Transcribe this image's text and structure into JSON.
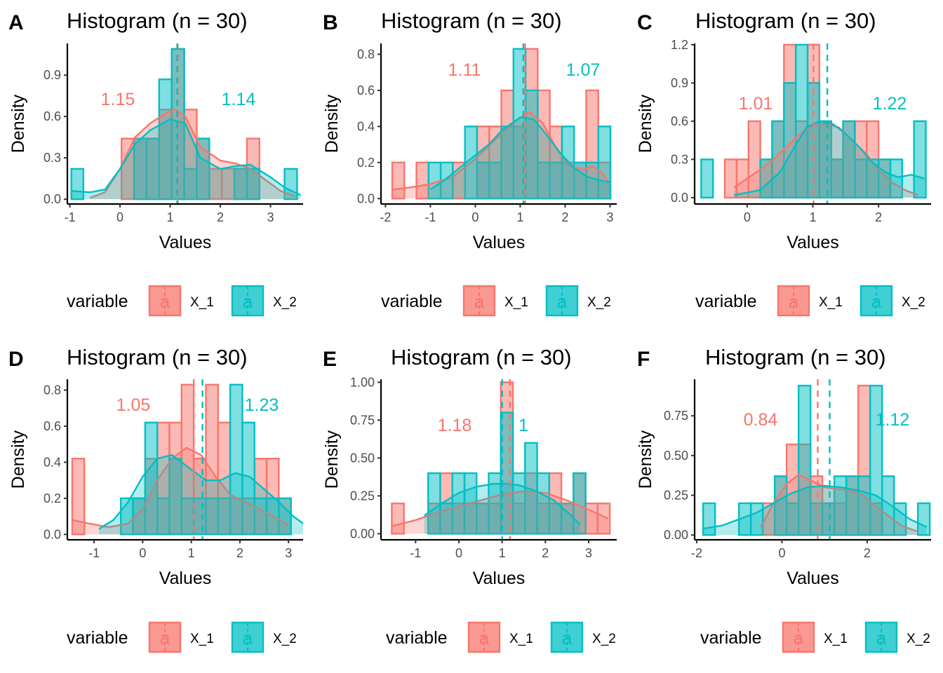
{
  "colors": {
    "X_1": "#F8766D",
    "X_2": "#00BFC4"
  },
  "chart_data": [
    {
      "panel": "A",
      "type": "histogram+density",
      "title": "Histogram (n = 30)",
      "xlabel": "Values",
      "ylabel": "Density",
      "xlim": [
        -1.05,
        3.65
      ],
      "ylim": [
        -0.035,
        1.13
      ],
      "xticks": [
        -1,
        0,
        1,
        2,
        3
      ],
      "yticks": [
        0,
        0.3,
        0.6,
        0.9
      ],
      "bins": [
        -0.97,
        -0.73,
        -0.47,
        -0.22,
        0.03,
        0.28,
        0.53,
        0.78,
        1.03,
        1.28,
        1.53,
        1.78,
        2.03,
        2.28,
        2.53,
        2.78,
        3.03,
        3.28,
        3.53
      ],
      "series": [
        {
          "name": "X_1",
          "mean": 1.15,
          "mean_label": "1.15",
          "hist": [
            0,
            0,
            0,
            0,
            0.44,
            0.44,
            0.44,
            0.65,
            1.09,
            0.65,
            0.44,
            0.22,
            0.22,
            0.22,
            0.44,
            0,
            0,
            0
          ],
          "density_x": [
            -0.6,
            -0.3,
            0,
            0.3,
            0.6,
            0.9,
            1.1,
            1.3,
            1.6,
            2,
            2.3,
            2.6,
            2.9,
            3.2,
            3.5
          ],
          "density_y": [
            0.01,
            0.05,
            0.22,
            0.45,
            0.55,
            0.62,
            0.65,
            0.6,
            0.38,
            0.28,
            0.26,
            0.22,
            0.14,
            0.06,
            0.02
          ]
        },
        {
          "name": "X_2",
          "mean": 1.14,
          "mean_label": "1.14",
          "hist": [
            0.22,
            0,
            0,
            0,
            0,
            0.44,
            0.44,
            0.87,
            1.09,
            0.22,
            0.44,
            0,
            0,
            0.22,
            0.22,
            0,
            0,
            0.22
          ],
          "density_x": [
            -0.97,
            -0.6,
            -0.3,
            0,
            0.3,
            0.6,
            1,
            1.3,
            1.6,
            2,
            2.3,
            2.6,
            3,
            3.3,
            3.6
          ],
          "density_y": [
            0.06,
            0.05,
            0.07,
            0.22,
            0.4,
            0.5,
            0.58,
            0.55,
            0.3,
            0.22,
            0.24,
            0.25,
            0.16,
            0.08,
            0.03
          ]
        }
      ]
    },
    {
      "panel": "B",
      "type": "histogram+density",
      "title": "Histogram (n = 30)",
      "xlabel": "Values",
      "ylabel": "Density",
      "xlim": [
        -2.1,
        3.15
      ],
      "ylim": [
        -0.03,
        0.86
      ],
      "xticks": [
        -2,
        -1,
        0,
        1,
        2,
        3
      ],
      "yticks": [
        0,
        0.2,
        0.4,
        0.6,
        0.8
      ],
      "bins": [
        -1.85,
        -1.58,
        -1.31,
        -1.04,
        -0.77,
        -0.5,
        -0.23,
        0.04,
        0.31,
        0.58,
        0.85,
        1.12,
        1.39,
        1.66,
        1.93,
        2.2,
        2.47,
        2.74,
        3.01
      ],
      "series": [
        {
          "name": "X_1",
          "mean": 1.11,
          "mean_label": "1.11",
          "hist": [
            0.2,
            0,
            0.2,
            0,
            0,
            0.2,
            0,
            0.4,
            0.4,
            0.6,
            0.4,
            0.83,
            0.6,
            0.4,
            0.2,
            0.2,
            0.6,
            0.2
          ],
          "density_x": [
            -1.85,
            -1.5,
            -1,
            -0.5,
            0,
            0.5,
            0.9,
            1.2,
            1.5,
            1.8,
            2.1,
            2.4,
            2.6,
            2.8,
            3
          ],
          "density_y": [
            0.05,
            0.06,
            0.08,
            0.12,
            0.22,
            0.34,
            0.43,
            0.48,
            0.42,
            0.28,
            0.18,
            0.16,
            0.18,
            0.15,
            0.08
          ]
        },
        {
          "name": "X_2",
          "mean": 1.07,
          "mean_label": "1.07",
          "hist": [
            0,
            0,
            0,
            0.2,
            0.2,
            0,
            0.4,
            0.2,
            0.2,
            0.4,
            0.83,
            0.6,
            0.2,
            0.2,
            0.4,
            0.2,
            0.2,
            0.4
          ],
          "density_x": [
            -1,
            -0.7,
            -0.3,
            0,
            0.3,
            0.6,
            1,
            1.3,
            1.6,
            1.9,
            2.2,
            2.5,
            2.8,
            3
          ],
          "density_y": [
            0.05,
            0.1,
            0.18,
            0.24,
            0.3,
            0.38,
            0.45,
            0.44,
            0.35,
            0.25,
            0.17,
            0.12,
            0.1,
            0.09
          ]
        }
      ]
    },
    {
      "panel": "C",
      "type": "histogram+density",
      "title": "Histogram (n = 30)",
      "xlabel": "Values",
      "ylabel": "Density",
      "xlim": [
        -0.8,
        2.8
      ],
      "ylim": [
        -0.05,
        1.21
      ],
      "xticks": [
        0,
        1,
        2
      ],
      "yticks": [
        0,
        0.3,
        0.6,
        0.9,
        1.2
      ],
      "bins": [
        -0.7,
        -0.52,
        -0.34,
        -0.16,
        0.02,
        0.2,
        0.38,
        0.56,
        0.74,
        0.92,
        1.1,
        1.28,
        1.46,
        1.64,
        1.82,
        2,
        2.18,
        2.36,
        2.54,
        2.72
      ],
      "series": [
        {
          "name": "X_1",
          "mean": 1.01,
          "mean_label": "1.01",
          "hist": [
            0,
            0,
            0.3,
            0.3,
            0.6,
            0.3,
            0.6,
            1.2,
            0.6,
            1.2,
            0.6,
            0.3,
            0.6,
            0.6,
            0.6,
            0.3,
            0,
            0,
            0
          ],
          "density_x": [
            -0.2,
            0,
            0.2,
            0.4,
            0.6,
            0.8,
            1,
            1.2,
            1.4,
            1.6,
            1.8,
            2,
            2.2,
            2.4,
            2.6
          ],
          "density_y": [
            0.08,
            0.15,
            0.22,
            0.3,
            0.4,
            0.5,
            0.56,
            0.58,
            0.55,
            0.45,
            0.35,
            0.22,
            0.12,
            0.06,
            0.02
          ]
        },
        {
          "name": "X_2",
          "mean": 1.22,
          "mean_label": "1.22",
          "hist": [
            0.3,
            0,
            0,
            0,
            0,
            0.3,
            0.6,
            0.9,
            1.2,
            0.9,
            0.6,
            0.3,
            0.6,
            0.3,
            0.3,
            0.3,
            0.3,
            0,
            0.6
          ],
          "density_x": [
            -0.2,
            0.2,
            0.5,
            0.7,
            0.9,
            1.1,
            1.3,
            1.5,
            1.7,
            1.9,
            2.1,
            2.3,
            2.5,
            2.7
          ],
          "density_y": [
            0.02,
            0.06,
            0.2,
            0.38,
            0.55,
            0.6,
            0.58,
            0.5,
            0.4,
            0.28,
            0.2,
            0.16,
            0.18,
            0.15
          ]
        }
      ]
    },
    {
      "panel": "D",
      "type": "histogram+density",
      "title": "Histogram (n = 30)",
      "xlabel": "Values",
      "ylabel": "Density",
      "xlim": [
        -1.55,
        3.3
      ],
      "ylim": [
        -0.03,
        0.86
      ],
      "xticks": [
        -1,
        0,
        1,
        2,
        3
      ],
      "yticks": [
        0,
        0.2,
        0.4,
        0.6,
        0.8
      ],
      "bins": [
        -1.45,
        -1.2,
        -0.95,
        -0.7,
        -0.45,
        -0.2,
        0.05,
        0.3,
        0.55,
        0.8,
        1.05,
        1.3,
        1.55,
        1.8,
        2.05,
        2.3,
        2.55,
        2.8,
        3.05
      ],
      "series": [
        {
          "name": "X_1",
          "mean": 1.05,
          "mean_label": "1.05",
          "hist": [
            0.42,
            0,
            0,
            0,
            0,
            0.2,
            0.42,
            0.62,
            0.62,
            0.83,
            0.42,
            0.83,
            0.62,
            0.2,
            0.2,
            0.42,
            0.42,
            0.2
          ],
          "density_x": [
            -1.45,
            -1.1,
            -0.7,
            -0.3,
            0,
            0.3,
            0.6,
            0.9,
            1.2,
            1.5,
            1.8,
            2.1,
            2.4,
            2.7,
            3
          ],
          "density_y": [
            0.08,
            0.06,
            0.04,
            0.06,
            0.14,
            0.3,
            0.42,
            0.48,
            0.44,
            0.32,
            0.22,
            0.18,
            0.14,
            0.1,
            0.05
          ]
        },
        {
          "name": "X_2",
          "mean": 1.23,
          "mean_label": "1.23",
          "hist": [
            0,
            0,
            0,
            0,
            0.2,
            0.2,
            0.62,
            0.2,
            0.42,
            0.2,
            0.2,
            0.2,
            0.2,
            0.83,
            0.62,
            0.2,
            0.2,
            0.2
          ],
          "density_x": [
            -0.9,
            -0.6,
            -0.3,
            0,
            0.3,
            0.6,
            1,
            1.3,
            1.6,
            1.9,
            2.2,
            2.5,
            2.8,
            3.1,
            3.3
          ],
          "density_y": [
            0.03,
            0.08,
            0.18,
            0.32,
            0.42,
            0.44,
            0.36,
            0.3,
            0.3,
            0.34,
            0.32,
            0.25,
            0.18,
            0.1,
            0.06
          ]
        }
      ]
    },
    {
      "panel": "E",
      "type": "histogram+density",
      "title": "Histogram (n = 30)",
      "xlabel": "Values",
      "ylabel": "Density",
      "xlim": [
        -1.8,
        3.65
      ],
      "ylim": [
        -0.04,
        1.02
      ],
      "xticks": [
        -1,
        0,
        1,
        2,
        3
      ],
      "yticks": [
        0,
        0.25,
        0.5,
        0.75,
        1
      ],
      "ytick_labels": [
        "0.00",
        "0.25",
        "0.50",
        "0.75",
        "1.00"
      ],
      "bins": [
        -1.55,
        -1.27,
        -0.99,
        -0.71,
        -0.43,
        -0.15,
        0.13,
        0.41,
        0.69,
        0.97,
        1.25,
        1.53,
        1.81,
        2.09,
        2.37,
        2.65,
        2.93,
        3.21,
        3.49
      ],
      "series": [
        {
          "name": "X_1",
          "mean": 1.18,
          "mean_label": "1.18",
          "hist": [
            0.2,
            0,
            0,
            0.2,
            0.4,
            0.2,
            0.2,
            0.2,
            0.2,
            1,
            0.2,
            0.4,
            0.2,
            0.4,
            0.2,
            0.4,
            0.2,
            0.2
          ],
          "density_x": [
            -1.55,
            -1,
            -0.5,
            0,
            0.5,
            1,
            1.5,
            2,
            2.5,
            3,
            3.45
          ],
          "density_y": [
            0.05,
            0.09,
            0.14,
            0.18,
            0.22,
            0.26,
            0.28,
            0.27,
            0.22,
            0.16,
            0.1
          ]
        },
        {
          "name": "X_2",
          "mean": 1,
          "mean_label": "1",
          "hist": [
            0,
            0,
            0,
            0.4,
            0.2,
            0.4,
            0.4,
            0.2,
            0.4,
            0.8,
            0.4,
            0.6,
            0.4,
            0.2,
            0.2,
            0.4,
            0,
            0
          ],
          "density_x": [
            -0.8,
            -0.4,
            0,
            0.4,
            0.8,
            1.1,
            1.4,
            1.8,
            2.2,
            2.6,
            2.8
          ],
          "density_y": [
            0.12,
            0.2,
            0.27,
            0.31,
            0.33,
            0.33,
            0.32,
            0.28,
            0.22,
            0.12,
            0.06
          ]
        }
      ]
    },
    {
      "panel": "F",
      "type": "histogram+density",
      "title": "Histogram (n = 30)",
      "xlabel": "Values",
      "ylabel": "Density",
      "xlim": [
        -2.05,
        3.5
      ],
      "ylim": [
        -0.03,
        0.98
      ],
      "xticks": [
        -2,
        0,
        2
      ],
      "yticks": [
        0,
        0.25,
        0.5,
        0.75
      ],
      "ytick_labels": [
        "0.00",
        "0.25",
        "0.50",
        "0.75"
      ],
      "bins": [
        -1.85,
        -1.57,
        -1.29,
        -1.01,
        -0.73,
        -0.45,
        -0.17,
        0.11,
        0.39,
        0.67,
        0.95,
        1.23,
        1.51,
        1.79,
        2.07,
        2.35,
        2.63,
        2.91,
        3.19,
        3.47
      ],
      "series": [
        {
          "name": "X_1",
          "mean": 0.84,
          "mean_label": "0.84",
          "hist": [
            0,
            0,
            0,
            0,
            0,
            0.2,
            0.37,
            0.57,
            0.57,
            0.37,
            0.2,
            0.2,
            0.37,
            0.94,
            0.2,
            0,
            0,
            0,
            0
          ],
          "density_x": [
            -0.5,
            -0.2,
            0.1,
            0.4,
            0.7,
            1,
            1.3,
            1.6,
            1.9,
            2.2,
            2.5,
            2.8,
            3.2
          ],
          "density_y": [
            0.05,
            0.2,
            0.32,
            0.38,
            0.34,
            0.3,
            0.29,
            0.28,
            0.25,
            0.18,
            0.12,
            0.06,
            0.02
          ]
        },
        {
          "name": "X_2",
          "mean": 1.12,
          "mean_label": "1.12",
          "hist": [
            0.2,
            0,
            0,
            0.2,
            0.2,
            0,
            0.37,
            0.2,
            0.94,
            0.2,
            0.2,
            0.37,
            0.37,
            0.37,
            0.94,
            0.37,
            0.2,
            0,
            0.2
          ],
          "density_x": [
            -1.85,
            -1.4,
            -1,
            -0.6,
            -0.2,
            0.2,
            0.6,
            1,
            1.4,
            1.8,
            2.2,
            2.6,
            3,
            3.4
          ],
          "density_y": [
            0.04,
            0.06,
            0.1,
            0.14,
            0.2,
            0.26,
            0.3,
            0.31,
            0.3,
            0.28,
            0.25,
            0.18,
            0.1,
            0.05
          ]
        }
      ]
    }
  ],
  "legend": {
    "title": "variable",
    "keys": [
      "X_1",
      "X_2"
    ],
    "glyph": "a"
  }
}
